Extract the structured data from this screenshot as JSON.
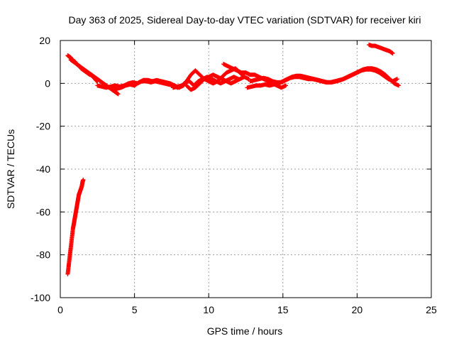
{
  "chart_data": {
    "type": "scatter",
    "title": "Day 363 of 2025, Sidereal Day-to-day VTEC variation (SDTVAR) for receiver kiri",
    "xlabel": "GPS time / hours",
    "ylabel": "SDTVAR / TECUs",
    "xlim": [
      0,
      25
    ],
    "ylim": [
      -100,
      20
    ],
    "xticks": [
      0,
      5,
      10,
      15,
      20,
      25
    ],
    "yticks": [
      -100,
      -80,
      -60,
      -40,
      -20,
      0,
      20
    ],
    "grid": true,
    "marker": "+",
    "color": "#ff0000",
    "series": [
      {
        "x": [
          0.5,
          0.55,
          0.6,
          0.65,
          0.7,
          0.75,
          0.8,
          0.85,
          0.9,
          0.95,
          1.0,
          1.05,
          1.1,
          1.15,
          1.2,
          1.25,
          1.3,
          1.35,
          1.4,
          1.45,
          1.5,
          1.55
        ],
        "y": [
          -89,
          -86,
          -83,
          -80,
          -77,
          -74,
          -71,
          -68,
          -66,
          -64,
          -62,
          -60,
          -58,
          -56,
          -54,
          -52,
          -51,
          -50,
          -49,
          -48,
          -46,
          -45
        ]
      },
      {
        "x": [
          0.5,
          0.6,
          0.7,
          0.8,
          0.9,
          1.0,
          1.1,
          1.2,
          1.3,
          1.4,
          1.5,
          1.6,
          1.7,
          1.8,
          1.9,
          2.0,
          2.1,
          2.2,
          2.3,
          2.4,
          2.5
        ],
        "y": [
          13,
          12.5,
          12,
          11,
          10.5,
          10,
          9,
          8.5,
          8,
          7,
          6.5,
          6,
          5.5,
          5,
          4.5,
          4,
          4,
          3,
          2.5,
          1.5,
          1
        ]
      },
      {
        "x": [
          0.7,
          0.9,
          1.1,
          1.3,
          1.5,
          1.7,
          1.9,
          2.1,
          2.3,
          2.5,
          2.7,
          2.9,
          3.1,
          3.3,
          3.5,
          3.7,
          3.9
        ],
        "y": [
          11,
          10,
          9,
          8,
          7,
          6,
          5,
          4,
          3,
          2,
          1,
          0,
          -1,
          -2,
          -3,
          -4,
          -5
        ]
      },
      {
        "x": [
          2.5,
          2.8,
          3.1,
          3.4,
          3.7,
          4.0,
          4.3,
          4.6,
          4.9,
          5.2,
          5.5,
          5.8,
          6.1,
          6.4,
          6.7,
          7.0,
          7.3,
          7.6,
          7.9
        ],
        "y": [
          -1,
          -1.5,
          -2,
          -1.5,
          -1,
          -1.5,
          -1,
          0,
          0.5,
          0,
          1,
          1,
          0.5,
          1,
          0.5,
          0,
          -0.5,
          -1,
          -2
        ]
      },
      {
        "x": [
          3.5,
          3.8,
          4.1,
          4.4,
          4.7,
          5.0,
          5.3,
          5.6,
          5.9,
          6.2,
          6.5,
          6.8,
          7.1,
          7.4,
          7.7,
          8.0,
          8.3,
          8.6
        ],
        "y": [
          -3,
          -2.5,
          -2,
          -1,
          -0.5,
          -1,
          0.5,
          1.5,
          1.5,
          1,
          1.5,
          1,
          0.5,
          0,
          -1,
          -2,
          -1,
          1
        ]
      },
      {
        "x": [
          7.6,
          7.9,
          8.2,
          8.5,
          8.8,
          9.1,
          9.4,
          9.7,
          10.0,
          10.3,
          10.6,
          10.9,
          11.2,
          11.5,
          11.8,
          12.1,
          12.4,
          12.7
        ],
        "y": [
          -2,
          -1.5,
          -1,
          1,
          4,
          6,
          4,
          2,
          1,
          0,
          1,
          3,
          5,
          6,
          7,
          5,
          3,
          2
        ]
      },
      {
        "x": [
          8.5,
          8.8,
          9.1,
          9.4,
          9.7,
          10.0,
          10.3,
          10.6,
          10.9,
          11.2,
          11.5,
          11.8,
          12.1,
          12.4
        ],
        "y": [
          -1,
          -3,
          -2,
          0,
          2,
          3,
          4,
          3,
          2,
          1,
          0,
          1,
          2,
          3
        ]
      },
      {
        "x": [
          8.7,
          9.0,
          9.3,
          9.6,
          9.9,
          10.2,
          10.5,
          10.8,
          11.1,
          11.4,
          11.7,
          12.0
        ],
        "y": [
          1,
          -1,
          1,
          2,
          3,
          2,
          1,
          0,
          1,
          2,
          3,
          2
        ]
      },
      {
        "x": [
          11.0,
          11.3,
          11.6,
          11.9,
          12.2,
          12.5,
          12.8,
          13.1,
          13.4,
          13.7,
          14.0,
          14.3,
          14.6,
          14.9,
          15.2
        ],
        "y": [
          9,
          8,
          7,
          6,
          5,
          5,
          4,
          4,
          3,
          2,
          1,
          0,
          -1,
          -2,
          -1
        ]
      },
      {
        "x": [
          12.6,
          12.9,
          13.2,
          13.5,
          13.8,
          14.1,
          14.4,
          14.7,
          15.0,
          15.3,
          15.6,
          15.9,
          16.2,
          16.5,
          16.8,
          17.1,
          17.4,
          17.7,
          18.0,
          18.3,
          18.6,
          18.9,
          19.2,
          19.5,
          19.8,
          20.1,
          20.4,
          20.7,
          21.0,
          21.3,
          21.6,
          21.9,
          22.2,
          22.5,
          22.8
        ],
        "y": [
          -2,
          -1.5,
          -1,
          -1,
          -0.5,
          -1,
          -0.5,
          0,
          1,
          2,
          3,
          3.5,
          3.5,
          3,
          2.5,
          2,
          1.5,
          1,
          0.5,
          0.5,
          1,
          1.5,
          2.5,
          3.5,
          4.5,
          5.5,
          6.5,
          7,
          7,
          6.5,
          5.5,
          4,
          2,
          0,
          -1
        ]
      },
      {
        "x": [
          12.8,
          13.1,
          13.4,
          13.7,
          14.0,
          14.3,
          14.6,
          14.9,
          15.2,
          15.5,
          15.8,
          16.1,
          16.4,
          16.7,
          17.0,
          17.3,
          17.6,
          17.9,
          18.2,
          18.5,
          18.8,
          19.1,
          19.4,
          19.7,
          20.0,
          20.3,
          20.6,
          20.9,
          21.2,
          21.5,
          21.8,
          22.1,
          22.4,
          22.7
        ],
        "y": [
          1,
          1.5,
          2,
          2.5,
          2,
          1,
          0.5,
          0.5,
          1.5,
          2.5,
          3,
          3,
          2.5,
          2,
          2,
          1.5,
          1,
          0.5,
          0.5,
          1,
          1.5,
          2,
          3,
          4,
          5,
          6,
          6.5,
          6.5,
          6,
          5,
          3.5,
          2,
          1,
          2
        ]
      },
      {
        "x": [
          20.8,
          21.0,
          21.2,
          21.4,
          21.6,
          21.8,
          22.0,
          22.2,
          22.4
        ],
        "y": [
          18,
          17.5,
          17.5,
          17,
          16.5,
          16,
          15.5,
          15,
          14
        ]
      }
    ]
  }
}
